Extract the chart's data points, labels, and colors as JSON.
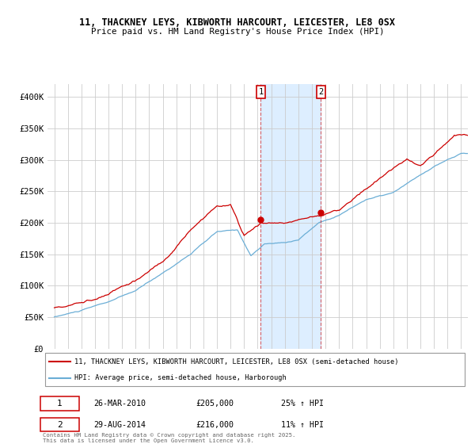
{
  "title_line1": "11, THACKNEY LEYS, KIBWORTH HARCOURT, LEICESTER, LE8 0SX",
  "title_line2": "Price paid vs. HM Land Registry's House Price Index (HPI)",
  "legend_line1": "11, THACKNEY LEYS, KIBWORTH HARCOURT, LEICESTER, LE8 0SX (semi-detached house)",
  "legend_line2": "HPI: Average price, semi-detached house, Harborough",
  "annotation1_date": "26-MAR-2010",
  "annotation1_price": "£205,000",
  "annotation1_hpi": "25% ↑ HPI",
  "annotation2_date": "29-AUG-2014",
  "annotation2_price": "£216,000",
  "annotation2_hpi": "11% ↑ HPI",
  "vline1_x": 2010.23,
  "vline2_x": 2014.66,
  "sale1_value": 205000,
  "sale2_value": 216000,
  "ylabel_ticks": [
    "£0",
    "£50K",
    "£100K",
    "£150K",
    "£200K",
    "£250K",
    "£300K",
    "£350K",
    "£400K"
  ],
  "ytick_vals": [
    0,
    50000,
    100000,
    150000,
    200000,
    250000,
    300000,
    350000,
    400000
  ],
  "xlim": [
    1994.5,
    2025.5
  ],
  "ylim": [
    0,
    420000
  ],
  "hpi_color": "#6baed6",
  "property_color": "#cc0000",
  "background_color": "#ffffff",
  "grid_color": "#cccccc",
  "shade_color": "#ddeeff",
  "hpi_keypoints_x": [
    1995,
    1997,
    1999,
    2001,
    2003,
    2005,
    2007,
    2008.5,
    2009.5,
    2010.5,
    2012,
    2013,
    2014.5,
    2016,
    2018,
    2020,
    2021.5,
    2023,
    2025
  ],
  "hpi_keypoints_y": [
    50000,
    60000,
    73000,
    90000,
    118000,
    148000,
    183000,
    185000,
    145000,
    163000,
    165000,
    170000,
    197000,
    210000,
    235000,
    245000,
    265000,
    285000,
    305000
  ],
  "prop_keypoints_x": [
    1995,
    1997,
    1999,
    2001,
    2003,
    2005,
    2007,
    2008,
    2009,
    2010.23,
    2012,
    2014.66,
    2016,
    2018,
    2020,
    2021,
    2022,
    2023,
    2024.5
  ],
  "prop_keypoints_y": [
    65000,
    75000,
    90000,
    110000,
    140000,
    185000,
    228000,
    230000,
    183000,
    205000,
    205000,
    216000,
    225000,
    258000,
    290000,
    305000,
    295000,
    315000,
    345000
  ],
  "copyright_text": "Contains HM Land Registry data © Crown copyright and database right 2025.\nThis data is licensed under the Open Government Licence v3.0."
}
